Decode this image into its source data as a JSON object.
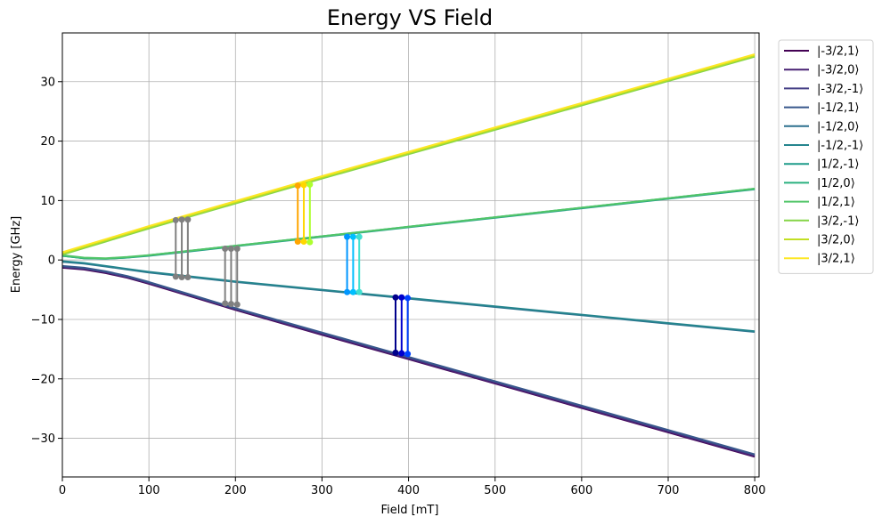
{
  "chart_data": {
    "type": "line",
    "title": "Energy VS Field",
    "xlabel": "Field [mT]",
    "ylabel": "Energy [GHz]",
    "xlim": [
      0,
      805
    ],
    "ylim": [
      -36.5,
      38.2
    ],
    "xticks": [
      0,
      100,
      200,
      300,
      400,
      500,
      600,
      700,
      800
    ],
    "yticks": [
      -30,
      -20,
      -10,
      0,
      10,
      20,
      30
    ],
    "xtick_labels": [
      "0",
      "100",
      "200",
      "300",
      "400",
      "500",
      "600",
      "700",
      "800"
    ],
    "ytick_labels": [
      "−30",
      "−20",
      "−10",
      "0",
      "10",
      "20",
      "30"
    ],
    "grid": true,
    "legend_position": "outside-right-top",
    "series": [
      {
        "name": "|-3/2,1⟩",
        "color": "#440154",
        "x": [
          0,
          25,
          50,
          75,
          100,
          150,
          200,
          300,
          400,
          500,
          600,
          700,
          800
        ],
        "y": [
          -1.3,
          -1.6,
          -2.2,
          -3.0,
          -4.0,
          -6.2,
          -8.4,
          -12.6,
          -16.7,
          -20.8,
          -24.9,
          -29.0,
          -33.1
        ]
      },
      {
        "name": "|-3/2,0⟩",
        "color": "#482173",
        "x": [
          0,
          25,
          50,
          75,
          100,
          150,
          200,
          300,
          400,
          500,
          600,
          700,
          800
        ],
        "y": [
          -1.2,
          -1.5,
          -2.1,
          -2.9,
          -3.9,
          -6.1,
          -8.3,
          -12.5,
          -16.6,
          -20.7,
          -24.8,
          -28.9,
          -33.0
        ]
      },
      {
        "name": "|-3/2,-1⟩",
        "color": "#433e85",
        "x": [
          0,
          25,
          50,
          75,
          100,
          150,
          200,
          300,
          400,
          500,
          600,
          700,
          800
        ],
        "y": [
          -1.1,
          -1.4,
          -2.0,
          -2.8,
          -3.8,
          -6.0,
          -8.2,
          -12.3,
          -16.4,
          -20.5,
          -24.6,
          -28.7,
          -32.8
        ]
      },
      {
        "name": "|-1/2,1⟩",
        "color": "#38588c",
        "x": [
          0,
          25,
          50,
          75,
          100,
          150,
          200,
          300,
          400,
          500,
          600,
          700,
          800
        ],
        "y": [
          -1.0,
          -1.3,
          -1.9,
          -2.7,
          -3.7,
          -5.9,
          -8.1,
          -12.2,
          -16.3,
          -20.4,
          -24.5,
          -28.6,
          -32.7
        ]
      },
      {
        "name": "|-1/2,0⟩",
        "color": "#2d708e",
        "x": [
          0,
          25,
          50,
          75,
          100,
          150,
          200,
          300,
          400,
          500,
          600,
          700,
          800
        ],
        "y": [
          -0.3,
          -0.6,
          -1.1,
          -1.6,
          -2.1,
          -2.9,
          -3.7,
          -5.1,
          -6.5,
          -7.9,
          -9.3,
          -10.7,
          -12.1
        ]
      },
      {
        "name": "|-1/2,-1⟩",
        "color": "#25858e",
        "x": [
          0,
          25,
          50,
          75,
          100,
          150,
          200,
          300,
          400,
          500,
          600,
          700,
          800
        ],
        "y": [
          -0.2,
          -0.5,
          -1.0,
          -1.5,
          -2.0,
          -2.8,
          -3.6,
          -5.0,
          -6.4,
          -7.8,
          -9.2,
          -10.6,
          -12.0
        ]
      },
      {
        "name": "|1/2,-1⟩",
        "color": "#1e9b8a",
        "x": [
          0,
          25,
          50,
          75,
          100,
          150,
          200,
          300,
          400,
          500,
          600,
          700,
          800
        ],
        "y": [
          0.7,
          0.3,
          0.2,
          0.4,
          0.7,
          1.5,
          2.3,
          3.9,
          5.5,
          7.1,
          8.7,
          10.3,
          11.9
        ]
      },
      {
        "name": "|1/2,0⟩",
        "color": "#2ab07f",
        "x": [
          0,
          25,
          50,
          75,
          100,
          150,
          200,
          300,
          400,
          500,
          600,
          700,
          800
        ],
        "y": [
          0.7,
          0.3,
          0.2,
          0.4,
          0.8,
          1.6,
          2.4,
          4.0,
          5.6,
          7.2,
          8.8,
          10.4,
          12.0
        ]
      },
      {
        "name": "|1/2,1⟩",
        "color": "#52c569",
        "x": [
          0,
          25,
          50,
          75,
          100,
          150,
          200,
          300,
          400,
          500,
          600,
          700,
          800
        ],
        "y": [
          0.8,
          0.4,
          0.3,
          0.5,
          0.8,
          1.6,
          2.4,
          4.0,
          5.6,
          7.2,
          8.8,
          10.4,
          12.0
        ]
      },
      {
        "name": "|3/2,-1⟩",
        "color": "#86d549",
        "x": [
          0,
          25,
          50,
          75,
          100,
          150,
          200,
          300,
          400,
          500,
          600,
          700,
          800
        ],
        "y": [
          0.9,
          2.0,
          3.1,
          4.2,
          5.3,
          7.4,
          9.5,
          13.7,
          17.8,
          21.9,
          26.0,
          30.1,
          34.2
        ]
      },
      {
        "name": "|3/2,0⟩",
        "color": "#c2df23",
        "x": [
          0,
          25,
          50,
          75,
          100,
          150,
          200,
          300,
          400,
          500,
          600,
          700,
          800
        ],
        "y": [
          1.1,
          2.2,
          3.3,
          4.4,
          5.5,
          7.6,
          9.7,
          13.9,
          18.0,
          22.1,
          26.2,
          30.3,
          34.4
        ]
      },
      {
        "name": "|3/2,1⟩",
        "color": "#fde725",
        "x": [
          0,
          25,
          50,
          75,
          100,
          150,
          200,
          300,
          400,
          500,
          600,
          700,
          800
        ],
        "y": [
          1.3,
          2.4,
          3.5,
          4.6,
          5.7,
          7.8,
          9.9,
          14.1,
          18.2,
          22.3,
          26.4,
          30.5,
          34.6
        ]
      }
    ],
    "transitions": [
      {
        "x": 131,
        "y1": 6.7,
        "y2": -2.8,
        "color": "#808080"
      },
      {
        "x": 138,
        "y1": 6.8,
        "y2": -2.9,
        "color": "#808080"
      },
      {
        "x": 145,
        "y1": 6.8,
        "y2": -2.9,
        "color": "#808080"
      },
      {
        "x": 188,
        "y1": 1.9,
        "y2": -7.3,
        "color": "#808080"
      },
      {
        "x": 195,
        "y1": 1.9,
        "y2": -7.4,
        "color": "#808080"
      },
      {
        "x": 202,
        "y1": 1.9,
        "y2": -7.5,
        "color": "#808080"
      },
      {
        "x": 272,
        "y1": 12.5,
        "y2": 3.1,
        "color": "#ffa500"
      },
      {
        "x": 279,
        "y1": 12.6,
        "y2": 3.1,
        "color": "#ffd700"
      },
      {
        "x": 286,
        "y1": 12.7,
        "y2": 3.0,
        "color": "#adff2f"
      },
      {
        "x": 329,
        "y1": 3.9,
        "y2": -5.4,
        "color": "#0096ff"
      },
      {
        "x": 336,
        "y1": 3.9,
        "y2": -5.4,
        "color": "#00bfff"
      },
      {
        "x": 343,
        "y1": 3.9,
        "y2": -5.4,
        "color": "#40e0d0"
      },
      {
        "x": 385,
        "y1": -6.3,
        "y2": -15.6,
        "color": "#00008b"
      },
      {
        "x": 392,
        "y1": -6.3,
        "y2": -15.7,
        "color": "#0000cd"
      },
      {
        "x": 399,
        "y1": -6.4,
        "y2": -15.8,
        "color": "#0040ff"
      }
    ]
  }
}
